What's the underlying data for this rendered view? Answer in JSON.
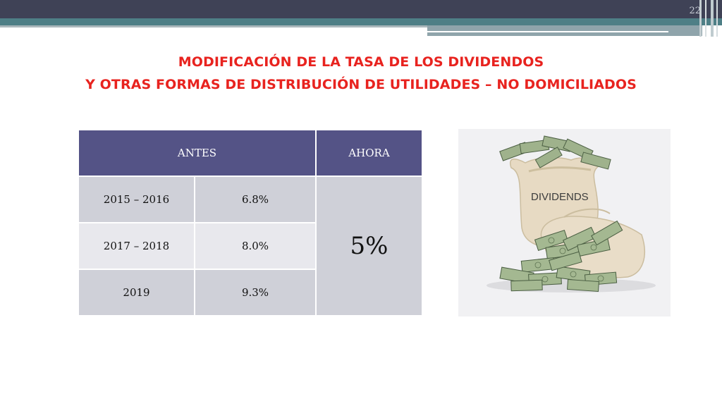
{
  "slide": {
    "page_number": "22"
  },
  "title": {
    "line1": "MODIFICACIÓN DE LA TASA DE LOS DIVIDENDOS",
    "line2": "Y  OTRAS FORMAS DE DISTRIBUCIÓN DE UTILIDADES – NO DOMICILIADOS"
  },
  "table": {
    "headers": {
      "before": "ANTES",
      "now": "AHORA"
    },
    "rows": [
      {
        "period": "2015 – 2016",
        "rate": "6.8%"
      },
      {
        "period": "2017 – 2018",
        "rate": "8.0%"
      },
      {
        "period": "2019",
        "rate": "9.3%"
      }
    ],
    "current_rate": "5%"
  },
  "image": {
    "bag_label": "DIVIDENDS"
  },
  "colors": {
    "title": "#e8231f",
    "table_header": "#545386",
    "row_dark": "#cfd0d8",
    "row_light": "#e8e8ed",
    "band_dark": "#3f4256",
    "band_teal": "#4e7f86"
  }
}
